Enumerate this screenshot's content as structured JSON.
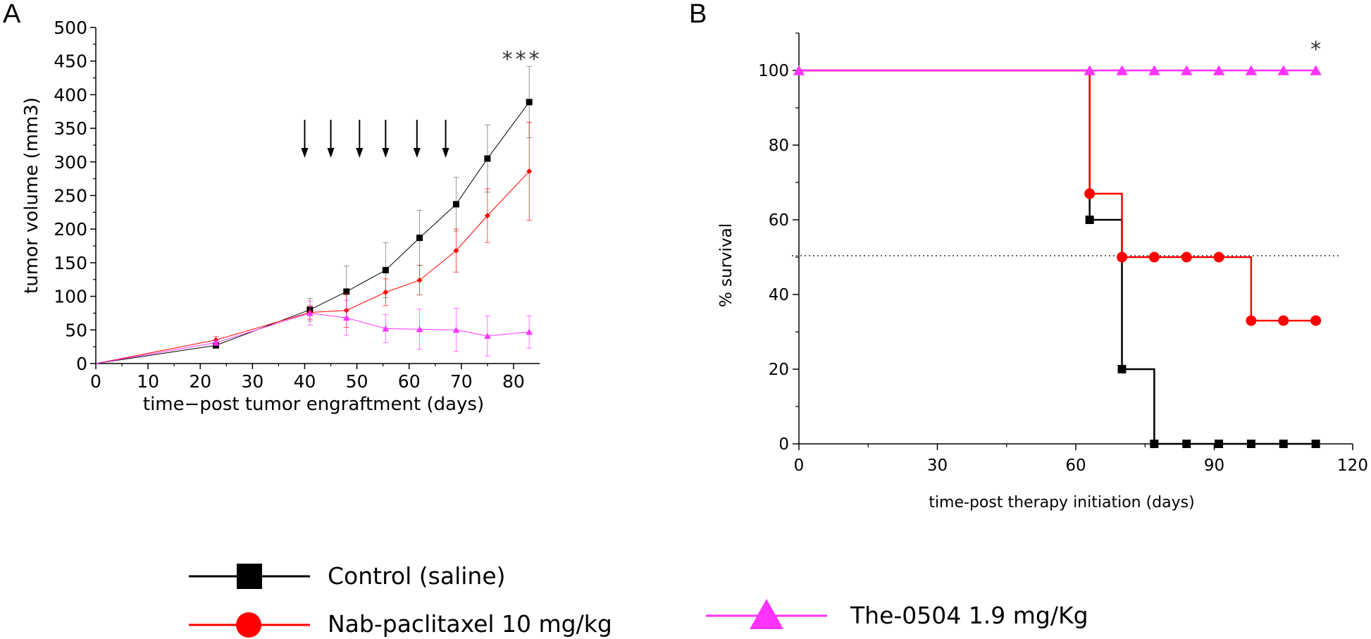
{
  "chart_data": [
    {
      "panel": "A",
      "type": "line",
      "title": "",
      "xlabel": "time−post tumor engraftment (days)",
      "ylabel": "tumor volume (mm3)",
      "xlim": [
        0,
        85
      ],
      "ylim": [
        0,
        500
      ],
      "xticks": [
        0,
        10,
        20,
        30,
        40,
        50,
        60,
        70,
        80
      ],
      "yticks": [
        0,
        50,
        100,
        150,
        200,
        250,
        300,
        350,
        400,
        450,
        500
      ],
      "annotation": "***",
      "treatment_days": [
        40,
        45,
        50.5,
        55.5,
        61.5,
        67
      ],
      "series": [
        {
          "name": "Control (saline)",
          "color": "#000000",
          "marker": "square",
          "x": [
            0,
            23,
            41,
            48,
            55.5,
            62,
            69,
            75,
            83
          ],
          "y": [
            0,
            27,
            80,
            107,
            139,
            187,
            237,
            305,
            389
          ],
          "err": [
            0,
            4,
            17,
            38,
            41,
            41,
            40,
            50,
            53
          ]
        },
        {
          "name": "Nab-paclitaxel 10 mg/kg",
          "color": "#ff0000",
          "marker": "diamond",
          "x": [
            0,
            23,
            41,
            48,
            55.5,
            62,
            69,
            75,
            83
          ],
          "y": [
            0,
            35,
            76,
            79,
            106,
            124,
            168,
            220,
            286
          ],
          "err": [
            0,
            5,
            10,
            25,
            20,
            22,
            32,
            40,
            73
          ]
        },
        {
          "name": "The-0504 1.9 mg/Kg",
          "color": "#ff33ff",
          "marker": "triangle",
          "x": [
            0,
            23,
            41,
            48,
            55.5,
            62,
            69,
            75,
            83
          ],
          "y": [
            0,
            31,
            75,
            68,
            52,
            51,
            50,
            41,
            47
          ],
          "err": [
            0,
            4,
            18,
            26,
            21,
            30,
            32,
            30,
            24
          ]
        }
      ]
    },
    {
      "panel": "B",
      "type": "line",
      "title": "",
      "xlabel": "time-post therapy initiation (days)",
      "ylabel": "% survival",
      "xlim": [
        0,
        120
      ],
      "ylim": [
        0,
        110
      ],
      "xticks": [
        0,
        30,
        60,
        90,
        120
      ],
      "yticks": [
        0,
        20,
        40,
        60,
        80,
        100
      ],
      "reference_line": 50,
      "annotation": "*",
      "series": [
        {
          "name": "Control (saline)",
          "color": "#000000",
          "marker": "square",
          "steps": [
            [
              0,
              100
            ],
            [
              63,
              60
            ],
            [
              70,
              20
            ],
            [
              77,
              0
            ],
            [
              112,
              0
            ]
          ],
          "points": [
            [
              63,
              60
            ],
            [
              70,
              20
            ],
            [
              77,
              0
            ],
            [
              84,
              0
            ],
            [
              91,
              0
            ],
            [
              98,
              0
            ],
            [
              105,
              0
            ],
            [
              112,
              0
            ]
          ]
        },
        {
          "name": "Nab-paclitaxel 10 mg/kg",
          "color": "#ff0000",
          "marker": "circle",
          "steps": [
            [
              0,
              100
            ],
            [
              63,
              67
            ],
            [
              70,
              50
            ],
            [
              98,
              33
            ],
            [
              112,
              33
            ]
          ],
          "points": [
            [
              63,
              67
            ],
            [
              70,
              50
            ],
            [
              77,
              50
            ],
            [
              84,
              50
            ],
            [
              91,
              50
            ],
            [
              98,
              33
            ],
            [
              105,
              33
            ],
            [
              112,
              33
            ]
          ]
        },
        {
          "name": "The-0504 1.9 mg/Kg",
          "color": "#ff33ff",
          "marker": "triangle",
          "steps": [
            [
              0,
              100
            ],
            [
              112,
              100
            ]
          ],
          "points": [
            [
              0,
              100
            ],
            [
              63,
              100
            ],
            [
              70,
              100
            ],
            [
              77,
              100
            ],
            [
              84,
              100
            ],
            [
              91,
              100
            ],
            [
              98,
              100
            ],
            [
              105,
              100
            ],
            [
              112,
              100
            ]
          ]
        }
      ]
    }
  ],
  "panel_labels": {
    "a": "A",
    "b": "B"
  },
  "legend": [
    {
      "label": "Control (saline)",
      "color": "#000000",
      "marker": "square"
    },
    {
      "label": "Nab-paclitaxel 10 mg/kg",
      "color": "#ff0000",
      "marker": "circle"
    },
    {
      "label": "The-0504 1.9 mg/Kg",
      "color": "#ff33ff",
      "marker": "triangle"
    }
  ]
}
